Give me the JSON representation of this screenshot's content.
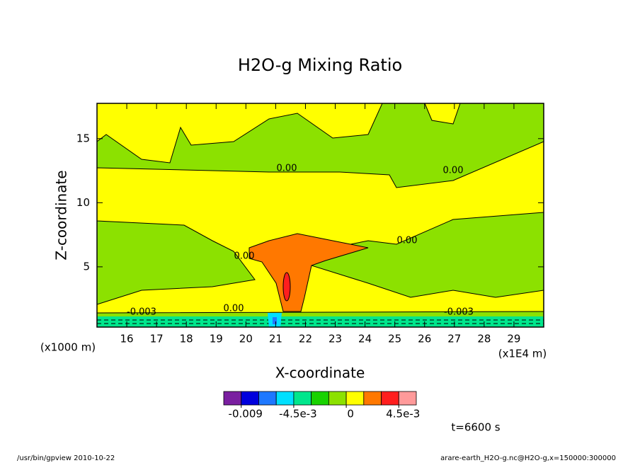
{
  "chart_data": {
    "type": "contour",
    "title": "H2O-g Mixing Ratio",
    "x_label": "X-coordinate",
    "y_label": "Z-coordinate",
    "x_unit": "(x1E4 m)",
    "y_unit": "(x1000 m)",
    "xlim": [
      15,
      30
    ],
    "xticks": [
      16,
      17,
      18,
      19,
      20,
      21,
      22,
      23,
      24,
      25,
      26,
      27,
      28,
      29
    ],
    "ylim": [
      0.3,
      17.75
    ],
    "yticks": [
      5,
      10,
      15
    ],
    "colorbar": {
      "levels": [
        -0.0105,
        -0.009,
        -0.0075,
        -0.006,
        -0.0045,
        -0.003,
        -0.0015,
        0,
        0.0015,
        0.003,
        0.0045,
        0.006
      ],
      "colors": [
        "#7a1fa0",
        "#0000dd",
        "#1e78ff",
        "#00e0ff",
        "#00e68c",
        "#19d200",
        "#8ce100",
        "#ffff00",
        "#ff7800",
        "#ff1e1e",
        "#ff9a9a"
      ],
      "ticks": [
        {
          "value": -0.009,
          "label": "-0.009"
        },
        {
          "value": -0.0045,
          "label": "-4.5e-3"
        },
        0,
        {
          "value": 0.0045,
          "label": "4.5e-3"
        }
      ]
    },
    "contour_labels": [
      "0.00",
      "0.00",
      "0.00",
      "0.00",
      "0.00",
      "-0.003",
      "-0.003"
    ],
    "time_label": "t=6600 s",
    "footer_left": "/usr/bin/gpview  2010-10-22",
    "footer_right": "arare-earth_H2O-g.nc@H2O-g,x=150000:300000"
  }
}
